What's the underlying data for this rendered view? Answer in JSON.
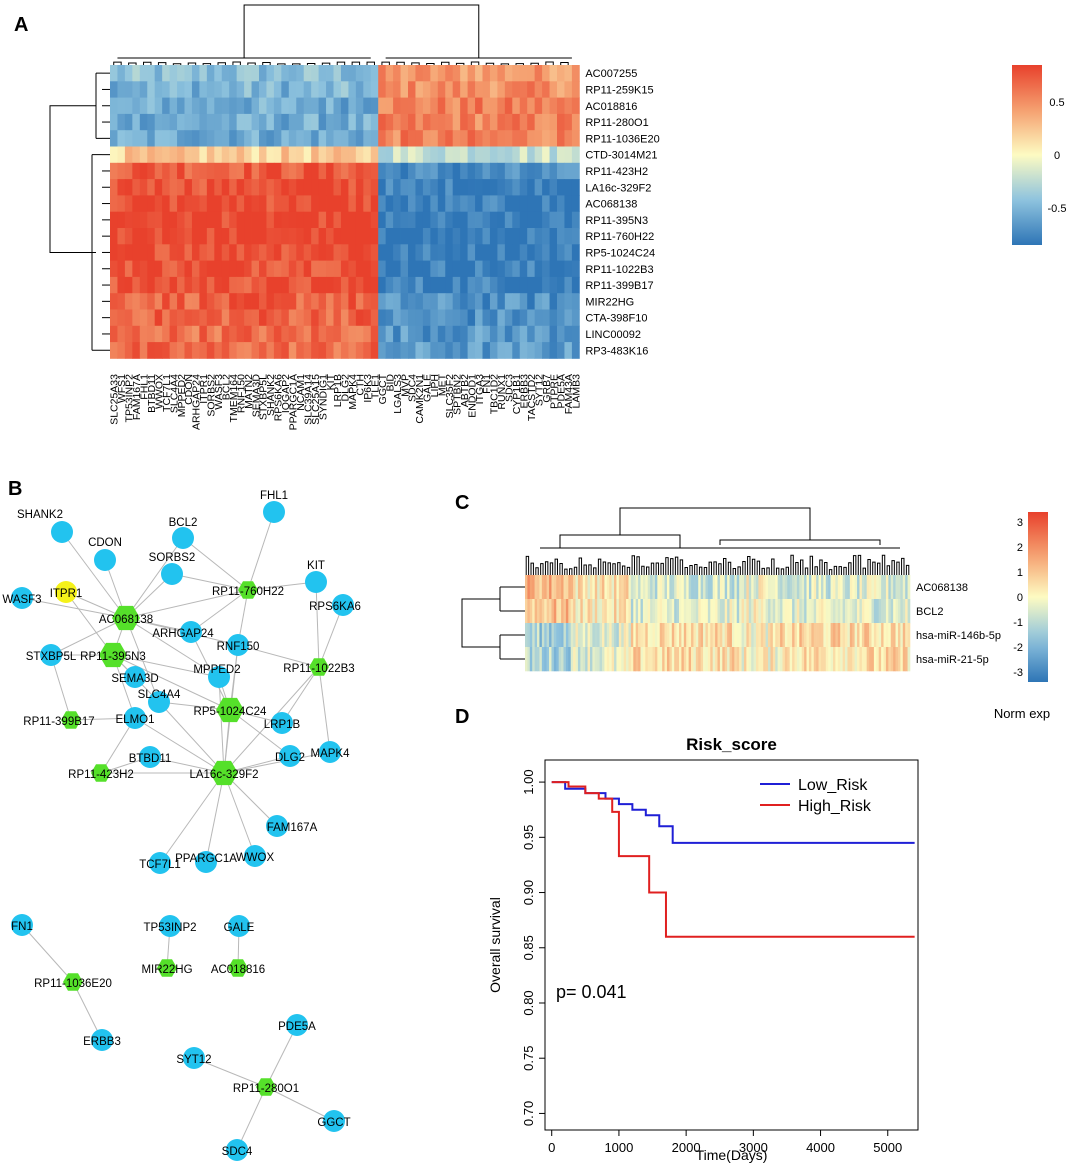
{
  "panels": {
    "a": "A",
    "b": "B",
    "c": "C",
    "d": "D"
  },
  "chart_data": [
    {
      "id": "heatmap_a",
      "type": "heatmap",
      "title": "",
      "rows": [
        "AC007255",
        "RP11-259K15",
        "AC018816",
        "RP11-280O1",
        "RP11-1036E20",
        "CTD-3014M21",
        "RP11-423H2",
        "LA16c-329F2",
        "AC068138",
        "RP11-395N3",
        "RP11-760H22",
        "RP5-1024C24",
        "RP11-1022B3",
        "RP11-399B17",
        "MIR22HG",
        "CTA-398F10",
        "LINC00092",
        "RP3-483K16"
      ],
      "columns": [
        "SLC25A33",
        "WFS1",
        "TP53INP2",
        "FAM167A",
        "FHL1",
        "BTBD11",
        "WWOX",
        "TCF7L1",
        "SLC4A4",
        "MPPED2",
        "CDON",
        "ARHGAP24",
        "ITPR1",
        "SORBS2",
        "WASF3",
        "BCL2",
        "TMEM164",
        "RNF150",
        "MATN2",
        "SEMA3D",
        "STXBP5L",
        "SHANK2",
        "RPS6KA6",
        "IQGAP2",
        "PPARGC1A",
        "NCAM1",
        "SLC39A14",
        "SLC25A15",
        "SYNDIG1",
        "KIT",
        "LRP1B",
        "DLG2",
        "MAPK4",
        "CTH",
        "IP6K3",
        "TLE1",
        "GGCT",
        "BID",
        "LGALS3",
        "MVP",
        "SDC4",
        "CAMK2N1",
        "GALE",
        "LIPH",
        "MET",
        "SLC35F2",
        "SPTBN2",
        "ABTB2",
        "ENDOD1",
        "ITGA3",
        "FN1",
        "TBC1D2",
        "RUNX1",
        "SDC3",
        "CYP1B1",
        "ERBB3",
        "TACSTD2",
        "SYT12",
        "GRB7",
        "PTPRE",
        "PDE5A",
        "FAM43A",
        "LAMB3"
      ],
      "row_pattern": [
        -0.45,
        -0.5,
        -0.55,
        -0.55,
        -0.55,
        0.2,
        0.75,
        0.8,
        0.82,
        0.85,
        0.85,
        0.82,
        0.8,
        0.78,
        0.7,
        0.7,
        0.65,
        0.65
      ],
      "column_split_index": 36,
      "colorbar": {
        "ticks": [
          "0.5",
          "0",
          "-0.5"
        ],
        "tick_values": [
          0.5,
          0,
          -0.5
        ],
        "min": -0.85,
        "max": 0.85
      }
    },
    {
      "id": "heatmap_c",
      "type": "heatmap",
      "rows": [
        "AC068138",
        "BCL2",
        "hsa-miR-146b-5p",
        "hsa-miR-21-5p"
      ],
      "colorbar": {
        "ticks": [
          "3",
          "2",
          "1",
          "0",
          "-1",
          "-2",
          "-3"
        ],
        "tick_values": [
          3,
          2,
          1,
          0,
          -1,
          -2,
          -3
        ],
        "min": -3.4,
        "max": 3.4,
        "label": "Norm exp"
      }
    },
    {
      "id": "survival_d",
      "type": "line",
      "title": "Risk_score",
      "xlabel": "Time(Days)",
      "ylabel": "Overall survival",
      "xlim": [
        -100,
        5450
      ],
      "ylim": [
        0.685,
        1.02
      ],
      "xticks": [
        "0",
        "1000",
        "2000",
        "3000",
        "4000",
        "5000"
      ],
      "xtick_values": [
        0,
        1000,
        2000,
        3000,
        4000,
        5000
      ],
      "yticks": [
        "1.00",
        "0.95",
        "0.90",
        "0.85",
        "0.80",
        "0.75",
        "0.70"
      ],
      "ytick_values": [
        1.0,
        0.95,
        0.9,
        0.85,
        0.8,
        0.75,
        0.7
      ],
      "annotation": "p= 0.041",
      "series": [
        {
          "name": "Low_Risk",
          "color": "#1f1fd6",
          "steps": [
            [
              0,
              1.0
            ],
            [
              200,
              0.994
            ],
            [
              500,
              0.99
            ],
            [
              800,
              0.985
            ],
            [
              1000,
              0.98
            ],
            [
              1200,
              0.975
            ],
            [
              1400,
              0.97
            ],
            [
              1600,
              0.96
            ],
            [
              1800,
              0.945
            ],
            [
              5400,
              0.945
            ]
          ]
        },
        {
          "name": "High_Risk",
          "color": "#e02020",
          "steps": [
            [
              0,
              1.0
            ],
            [
              250,
              0.996
            ],
            [
              500,
              0.99
            ],
            [
              700,
              0.985
            ],
            [
              900,
              0.973
            ],
            [
              1000,
              0.933
            ],
            [
              1450,
              0.9
            ],
            [
              1700,
              0.86
            ],
            [
              5400,
              0.86
            ]
          ]
        }
      ]
    },
    {
      "id": "network_b",
      "type": "network",
      "nodes": [
        {
          "id": "SHANK2",
          "kind": "gene"
        },
        {
          "id": "CDON",
          "kind": "gene"
        },
        {
          "id": "BCL2",
          "kind": "gene"
        },
        {
          "id": "FHL1",
          "kind": "gene"
        },
        {
          "id": "SORBS2",
          "kind": "gene"
        },
        {
          "id": "KIT",
          "kind": "gene"
        },
        {
          "id": "ITPR1",
          "kind": "mirna"
        },
        {
          "id": "WASF3",
          "kind": "gene"
        },
        {
          "id": "RPS6KA6",
          "kind": "gene"
        },
        {
          "id": "AC068138",
          "kind": "lnc"
        },
        {
          "id": "RP11-760H22",
          "kind": "lnc"
        },
        {
          "id": "ARHGAP24",
          "kind": "gene"
        },
        {
          "id": "RNF150",
          "kind": "gene"
        },
        {
          "id": "STXBP5L",
          "kind": "gene"
        },
        {
          "id": "RP11-395N3",
          "kind": "lnc"
        },
        {
          "id": "RP11-1022B3",
          "kind": "lnc"
        },
        {
          "id": "SEMA3D",
          "kind": "gene"
        },
        {
          "id": "MPPED2",
          "kind": "gene"
        },
        {
          "id": "SLC4A4",
          "kind": "gene"
        },
        {
          "id": "RP5-1024C24",
          "kind": "lnc"
        },
        {
          "id": "RP11-399B17",
          "kind": "lnc"
        },
        {
          "id": "ELMO1",
          "kind": "gene"
        },
        {
          "id": "LRP1B",
          "kind": "gene"
        },
        {
          "id": "DLG2",
          "kind": "gene"
        },
        {
          "id": "MAPK4",
          "kind": "gene"
        },
        {
          "id": "BTBD11",
          "kind": "gene"
        },
        {
          "id": "RP11-423H2",
          "kind": "lnc"
        },
        {
          "id": "LA16c-329F2",
          "kind": "lnc"
        },
        {
          "id": "FAM167A",
          "kind": "gene"
        },
        {
          "id": "TCF7L1",
          "kind": "gene"
        },
        {
          "id": "WWOX",
          "kind": "gene"
        },
        {
          "id": "PPARGC1A",
          "kind": "gene"
        },
        {
          "id": "FN1",
          "kind": "gene"
        },
        {
          "id": "TP53INP2",
          "kind": "gene"
        },
        {
          "id": "GALE",
          "kind": "gene"
        },
        {
          "id": "RP11-1036E20",
          "kind": "lnc"
        },
        {
          "id": "MIR22HG",
          "kind": "lnc"
        },
        {
          "id": "AC018816",
          "kind": "lnc"
        },
        {
          "id": "ERBB3",
          "kind": "gene"
        },
        {
          "id": "PDE5A",
          "kind": "gene"
        },
        {
          "id": "SYT12",
          "kind": "gene"
        },
        {
          "id": "RP11-280O1",
          "kind": "lnc"
        },
        {
          "id": "GGCT",
          "kind": "gene"
        },
        {
          "id": "SDC4",
          "kind": "gene"
        }
      ],
      "edges": [
        [
          "AC068138",
          "SHANK2"
        ],
        [
          "AC068138",
          "CDON"
        ],
        [
          "AC068138",
          "BCL2"
        ],
        [
          "AC068138",
          "SORBS2"
        ],
        [
          "AC068138",
          "ITPR1"
        ],
        [
          "AC068138",
          "WASF3"
        ],
        [
          "AC068138",
          "ARHGAP24"
        ],
        [
          "AC068138",
          "STXBP5L"
        ],
        [
          "AC068138",
          "RP11-395N3"
        ],
        [
          "AC068138",
          "MPPED2"
        ],
        [
          "AC068138",
          "SLC4A4"
        ],
        [
          "AC068138",
          "RNF150"
        ],
        [
          "AC068138",
          "RP11-760H22"
        ],
        [
          "ITPR1",
          "RP11-395N3"
        ],
        [
          "BCL2",
          "RP11-760H22"
        ],
        [
          "SORBS2",
          "RP11-760H22"
        ],
        [
          "FHL1",
          "RP11-760H22"
        ],
        [
          "KIT",
          "RP11-760H22"
        ],
        [
          "RP11-760H22",
          "RNF150"
        ],
        [
          "RP11-760H22",
          "ARHGAP24"
        ],
        [
          "RPS6KA6",
          "RP11-1022B3"
        ],
        [
          "KIT",
          "RP11-1022B3"
        ],
        [
          "RP11-1022B3",
          "RNF150"
        ],
        [
          "RP11-1022B3",
          "LRP1B"
        ],
        [
          "RP11-1022B3",
          "MAPK4"
        ],
        [
          "RP11-395N3",
          "STXBP5L"
        ],
        [
          "RP11-395N3",
          "SEMA3D"
        ],
        [
          "RP11-395N3",
          "MPPED2"
        ],
        [
          "RP11-395N3",
          "SLC4A4"
        ],
        [
          "RP11-395N3",
          "ELMO1"
        ],
        [
          "RP11-395N3",
          "RP5-1024C24"
        ],
        [
          "STXBP5L",
          "RP11-399B17"
        ],
        [
          "RP5-1024C24",
          "MPPED2"
        ],
        [
          "RP5-1024C24",
          "SLC4A4"
        ],
        [
          "RP5-1024C24",
          "LRP1B"
        ],
        [
          "RP5-1024C24",
          "DLG2"
        ],
        [
          "RP5-1024C24",
          "RNF150"
        ],
        [
          "RP5-1024C24",
          "ARHGAP24"
        ],
        [
          "RP5-1024C24",
          "LA16c-329F2"
        ],
        [
          "ELMO1",
          "RP11-399B17"
        ],
        [
          "ELMO1",
          "RP11-423H2"
        ],
        [
          "ELMO1",
          "LA16c-329F2"
        ],
        [
          "LA16c-329F2",
          "BTBD11"
        ],
        [
          "LA16c-329F2",
          "SLC4A4"
        ],
        [
          "LA16c-329F2",
          "DLG2"
        ],
        [
          "LA16c-329F2",
          "MAPK4"
        ],
        [
          "LA16c-329F2",
          "FAM167A"
        ],
        [
          "LA16c-329F2",
          "TCF7L1"
        ],
        [
          "LA16c-329F2",
          "WWOX"
        ],
        [
          "LA16c-329F2",
          "PPARGC1A"
        ],
        [
          "LA16c-329F2",
          "RP11-423H2"
        ],
        [
          "LA16c-329F2",
          "MPPED2"
        ],
        [
          "LA16c-329F2",
          "RNF150"
        ],
        [
          "LA16c-329F2",
          "RP11-1022B3"
        ],
        [
          "BTBD11",
          "RP11-423H2"
        ],
        [
          "FN1",
          "RP11-1036E20"
        ],
        [
          "RP11-1036E20",
          "ERBB3"
        ],
        [
          "TP53INP2",
          "MIR22HG"
        ],
        [
          "GALE",
          "AC018816"
        ],
        [
          "PDE5A",
          "RP11-280O1"
        ],
        [
          "SYT12",
          "RP11-280O1"
        ],
        [
          "RP11-280O1",
          "GGCT"
        ],
        [
          "RP11-280O1",
          "SDC4"
        ]
      ]
    }
  ]
}
